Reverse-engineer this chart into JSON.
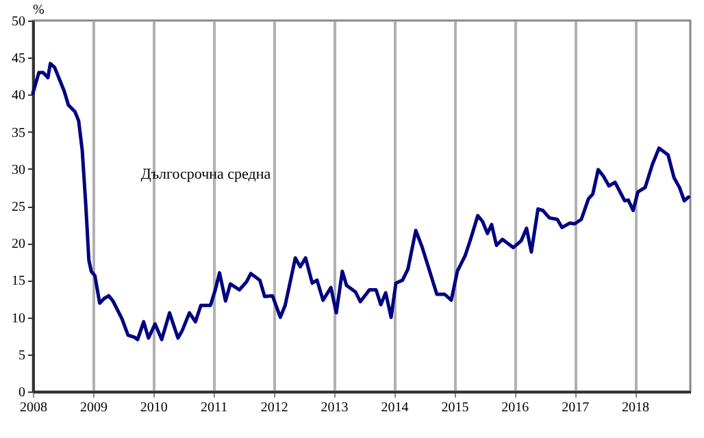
{
  "chart_data": {
    "type": "line",
    "ylabel": "%",
    "annotations": [
      "Дългосрочна средна"
    ],
    "xlim": [
      2008,
      2018.92
    ],
    "xticks": [
      2008,
      2009,
      2010,
      2011,
      2012,
      2013,
      2014,
      2015,
      2016,
      2017,
      2018
    ],
    "ylim": [
      0,
      50
    ],
    "yticks": [
      0,
      5,
      10,
      15,
      20,
      25,
      30,
      35,
      40,
      45,
      50
    ],
    "grid": "x",
    "marker": "none",
    "line_style": "solid",
    "series": [
      {
        "color": "#000080",
        "x": [
          2008.0,
          2008.1,
          2008.17,
          2008.25,
          2008.29,
          2008.36,
          2008.52,
          2008.59,
          2008.7,
          2008.76,
          2008.82,
          2008.88,
          2008.93,
          2008.97,
          2009.03,
          2009.11,
          2009.18,
          2009.26,
          2009.33,
          2009.48,
          2009.58,
          2009.69,
          2009.74,
          2009.84,
          2009.92,
          2010.03,
          2010.14,
          2010.27,
          2010.41,
          2010.48,
          2010.6,
          2010.7,
          2010.79,
          2010.95,
          2011.03,
          2011.1,
          2011.2,
          2011.28,
          2011.43,
          2011.55,
          2011.62,
          2011.77,
          2011.85,
          2011.98,
          2012.11,
          2012.19,
          2012.36,
          2012.44,
          2012.53,
          2012.64,
          2012.72,
          2012.82,
          2012.95,
          2013.04,
          2013.14,
          2013.21,
          2013.36,
          2013.44,
          2013.59,
          2013.7,
          2013.78,
          2013.86,
          2013.95,
          2014.03,
          2014.14,
          2014.23,
          2014.36,
          2014.46,
          2014.58,
          2014.71,
          2014.84,
          2014.95,
          2015.05,
          2015.18,
          2015.27,
          2015.39,
          2015.47,
          2015.55,
          2015.62,
          2015.7,
          2015.8,
          2015.98,
          2016.11,
          2016.2,
          2016.28,
          2016.39,
          2016.47,
          2016.58,
          2016.71,
          2016.79,
          2016.92,
          2017.0,
          2017.11,
          2017.23,
          2017.3,
          2017.39,
          2017.47,
          2017.57,
          2017.67,
          2017.74,
          2017.83,
          2017.89,
          2017.97,
          2018.05,
          2018.17,
          2018.29,
          2018.4,
          2018.55,
          2018.65,
          2018.74,
          2018.82,
          2018.89
        ],
        "values": [
          40.2,
          43.0,
          43.0,
          42.3,
          44.2,
          43.7,
          40.5,
          38.6,
          37.7,
          36.5,
          32.5,
          25.0,
          17.7,
          16.2,
          15.6,
          11.9,
          12.5,
          12.9,
          12.2,
          9.8,
          7.6,
          7.3,
          7.0,
          9.4,
          7.2,
          9.1,
          7.0,
          10.6,
          7.2,
          8.2,
          10.6,
          9.4,
          11.6,
          11.6,
          13.7,
          16.0,
          12.2,
          14.5,
          13.7,
          14.8,
          15.9,
          15.0,
          12.8,
          12.9,
          10.0,
          11.6,
          18.0,
          16.8,
          18.0,
          14.6,
          15.0,
          12.3,
          14.0,
          10.6,
          16.2,
          14.3,
          13.4,
          12.1,
          13.7,
          13.7,
          11.7,
          13.3,
          10.0,
          14.6,
          15.0,
          16.5,
          21.7,
          19.6,
          16.5,
          13.1,
          13.1,
          12.3,
          16.2,
          18.3,
          20.5,
          23.7,
          22.9,
          21.3,
          22.5,
          19.7,
          20.5,
          19.4,
          20.3,
          22.0,
          18.8,
          24.6,
          24.4,
          23.4,
          23.2,
          22.1,
          22.7,
          22.6,
          23.2,
          26.0,
          26.6,
          29.9,
          29.1,
          27.7,
          28.2,
          27.1,
          25.7,
          25.8,
          24.4,
          26.9,
          27.5,
          30.6,
          32.8,
          31.9,
          28.8,
          27.5,
          25.7,
          26.2
        ]
      }
    ]
  }
}
